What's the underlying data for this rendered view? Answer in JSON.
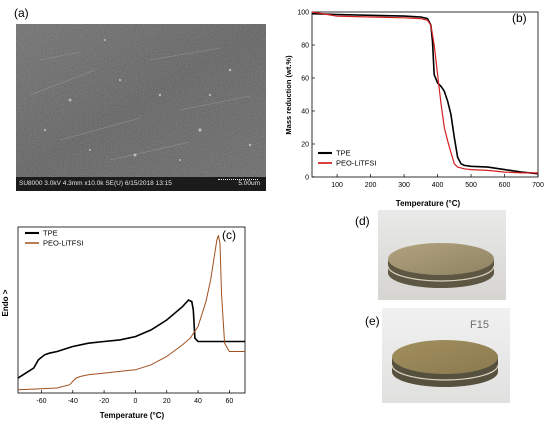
{
  "panels": {
    "a": {
      "label": "(a)",
      "sem_info": "SU8000 3.0kV 4.3mm x10.0k SE(U) 6/15/2018 13:15",
      "scale_text": "5.00um"
    },
    "b": {
      "label": "(b)"
    },
    "c": {
      "label": "(c)"
    },
    "d": {
      "label": "(d)"
    },
    "e": {
      "label": "(e)",
      "photo_text": "F15"
    }
  },
  "colors": {
    "tpe": "#000000",
    "peo": "#d41f1f"
  },
  "chart_data": [
    {
      "type": "line",
      "panel": "(b)",
      "xlabel": "Temperature (°C)",
      "ylabel": "Mass reduction (wt.%)",
      "xlim": [
        25,
        700
      ],
      "ylim": [
        0,
        100
      ],
      "xticks": [
        100,
        200,
        300,
        400,
        500,
        600,
        700
      ],
      "yticks": [
        0,
        20,
        40,
        60,
        80,
        100
      ],
      "legend_position": "bottom-left",
      "series": [
        {
          "name": "TPE",
          "color": "#000000",
          "x": [
            25,
            100,
            200,
            300,
            350,
            370,
            380,
            385,
            390,
            400,
            410,
            420,
            430,
            440,
            450,
            460,
            470,
            480,
            500,
            550,
            600,
            650,
            700
          ],
          "y": [
            99,
            98.5,
            98,
            97.5,
            97,
            96,
            92,
            82,
            62,
            57,
            55,
            52,
            46,
            38,
            24,
            12,
            8,
            7,
            6.5,
            6,
            4.5,
            3,
            2
          ]
        },
        {
          "name": "PEO-LiTFSI",
          "color": "#d41f1f",
          "x": [
            25,
            100,
            200,
            300,
            350,
            370,
            380,
            390,
            400,
            410,
            420,
            430,
            440,
            450,
            460,
            470,
            480,
            500,
            550,
            600,
            650,
            700
          ],
          "y": [
            100,
            97.5,
            97,
            96.5,
            96,
            95,
            92,
            80,
            62,
            45,
            30,
            22,
            15,
            8,
            6,
            5.5,
            5,
            4.5,
            4,
            3,
            2.5,
            2.5
          ]
        }
      ]
    },
    {
      "type": "line",
      "panel": "(c)",
      "xlabel": "Temperature (°C)",
      "ylabel": "Endo >",
      "xlim": [
        -75,
        70
      ],
      "xticks": [
        -60,
        -40,
        -20,
        0,
        20,
        40,
        60
      ],
      "legend_position": "top-left",
      "series": [
        {
          "name": "TPE",
          "color": "#000000",
          "x": [
            -75,
            -70,
            -65,
            -62,
            -58,
            -55,
            -50,
            -40,
            -30,
            -20,
            -10,
            0,
            10,
            20,
            25,
            30,
            34,
            36,
            37,
            38,
            40,
            50,
            60,
            70
          ],
          "y": [
            0.09,
            0.12,
            0.15,
            0.2,
            0.23,
            0.24,
            0.25,
            0.28,
            0.3,
            0.31,
            0.32,
            0.34,
            0.38,
            0.44,
            0.48,
            0.52,
            0.56,
            0.55,
            0.5,
            0.33,
            0.31,
            0.31,
            0.31,
            0.31
          ]
        },
        {
          "name": "PEO-LiTFSI",
          "color": "#a0501e",
          "x": [
            -75,
            -60,
            -50,
            -42,
            -38,
            -35,
            -30,
            -20,
            -10,
            0,
            10,
            20,
            30,
            35,
            40,
            45,
            48,
            50,
            52,
            53,
            54,
            55,
            57,
            60,
            70
          ],
          "y": [
            0.02,
            0.025,
            0.03,
            0.05,
            0.09,
            0.1,
            0.11,
            0.12,
            0.13,
            0.14,
            0.17,
            0.22,
            0.29,
            0.33,
            0.4,
            0.55,
            0.68,
            0.8,
            0.92,
            0.95,
            0.9,
            0.6,
            0.3,
            0.25,
            0.25
          ]
        }
      ]
    }
  ]
}
